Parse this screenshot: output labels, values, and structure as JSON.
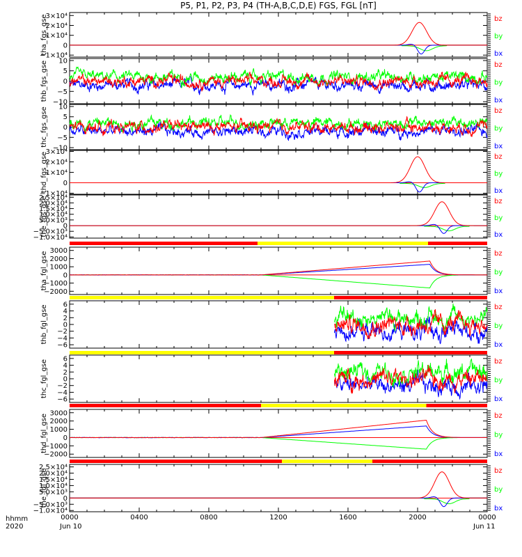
{
  "title": "P5, P1, P2, P3, P4 (TH-A,B,C,D,E) FGS, FGL [nT]",
  "footer": {
    "time_label": "hhmm",
    "year_label": "2020",
    "start_date": "Jun 10",
    "end_date": "Jun 11"
  },
  "colors": {
    "bx": "#0000ff",
    "by": "#00ff00",
    "bz": "#ff0000",
    "bar_red": "#ff0000",
    "bar_yellow": "#ffff00"
  },
  "chart_data": {
    "type": "line",
    "x_ticks": [
      "0000",
      "0400",
      "0800",
      "1200",
      "1600",
      "2000",
      "0000"
    ],
    "x_range_hours": [
      0,
      24
    ],
    "legend": [
      "bz",
      "by",
      "bx"
    ],
    "panels": [
      {
        "ylabel": "tha_fgs_gse",
        "yticks": [
          "3×10⁴",
          "2×10⁴",
          "1×10⁴",
          "0",
          "−1×10⁴"
        ],
        "ytick_values": [
          30000,
          20000,
          10000,
          0,
          -10000
        ],
        "ylim": [
          -12000,
          33000
        ],
        "signal": "spike",
        "spike_center": 20.1,
        "peak_bz": 23000,
        "peak_by": -5000,
        "peak_bx": -9000,
        "status_bar": null
      },
      {
        "ylabel": "thb_fgs_gse",
        "yticks": [
          "10",
          "5",
          "0",
          "−5",
          "−10"
        ],
        "ytick_values": [
          10,
          5,
          0,
          -5,
          -10
        ],
        "ylim": [
          -11,
          11
        ],
        "signal": "noise",
        "base_bz": 0,
        "base_by": 2,
        "base_bx": -2,
        "status_bar": null
      },
      {
        "ylabel": "thc_fgs_gse",
        "yticks": [
          "10",
          "5",
          "0",
          "−5",
          "−10"
        ],
        "ytick_values": [
          10,
          5,
          0,
          -5,
          -10
        ],
        "ylim": [
          -11,
          11
        ],
        "signal": "noise",
        "base_bz": 0,
        "base_by": 2,
        "base_bx": -2,
        "status_bar": null
      },
      {
        "ylabel": "thd_fgs_gse",
        "yticks": [
          "3×10⁴",
          "2×10⁴",
          "1×10⁴",
          "0",
          "−1×10⁴"
        ],
        "ytick_values": [
          30000,
          20000,
          10000,
          0,
          -10000
        ],
        "ylim": [
          -11000,
          31000
        ],
        "signal": "spike",
        "spike_center": 20.0,
        "peak_bz": 25000,
        "peak_by": -4000,
        "peak_bx": -9000,
        "status_bar": null
      },
      {
        "ylabel": "the_fgs_gse",
        "yticks": [
          "2.5×10⁴",
          "2.0×10⁴",
          "1.5×10⁴",
          "1.0×10⁴",
          "5.0×10³",
          "0",
          "−5.0×10³",
          "−1.0×10⁴"
        ],
        "ytick_values": [
          25000,
          20000,
          15000,
          10000,
          5000,
          0,
          -5000,
          -10000
        ],
        "ylim": [
          -11000,
          27000
        ],
        "signal": "spike",
        "spike_center": 21.4,
        "peak_bz": 21000,
        "peak_by": -4000,
        "peak_bx": -7000,
        "status_bar": null
      },
      {
        "ylabel": "tha_fgl_gse",
        "yticks": [
          "3000",
          "2000",
          "1000",
          "0",
          "−1000",
          "−2000"
        ],
        "ytick_values": [
          3000,
          2000,
          1000,
          0,
          -1000,
          -2000
        ],
        "ylim": [
          -2400,
          3400
        ],
        "signal": "ramp",
        "ramp_start": 11,
        "ramp_end": 20.7,
        "ramp_bz": 1700,
        "ramp_bx": 1300,
        "ramp_by": -1600,
        "status_bar": {
          "segments": [
            [
              "red",
              0,
              10.8
            ],
            [
              "yellow",
              10.8,
              20.6
            ],
            [
              "red",
              20.6,
              24
            ]
          ]
        }
      },
      {
        "ylabel": "thb_fgl_gse",
        "yticks": [
          "6",
          "4",
          "2",
          "0",
          "−2",
          "−4",
          "−6"
        ],
        "ytick_values": [
          6,
          4,
          2,
          0,
          -2,
          -4,
          -6
        ],
        "ylim": [
          -7,
          7
        ],
        "signal": "noise_late",
        "start": 15.2,
        "base_bz": 0,
        "base_by": 2,
        "base_bx": -2,
        "status_bar": {
          "segments": [
            [
              "yellow",
              0,
              15.2
            ],
            [
              "red",
              15.2,
              24
            ]
          ]
        }
      },
      {
        "ylabel": "thc_fgl_gse",
        "yticks": [
          "6",
          "4",
          "2",
          "0",
          "−2",
          "−4",
          "−6"
        ],
        "ytick_values": [
          6,
          4,
          2,
          0,
          -2,
          -4,
          -6
        ],
        "ylim": [
          -7,
          7
        ],
        "signal": "noise_late",
        "start": 15.2,
        "base_bz": 0,
        "base_by": 2,
        "base_bx": -2,
        "status_bar": {
          "segments": [
            [
              "yellow",
              0,
              15.2
            ],
            [
              "red",
              15.2,
              24
            ]
          ]
        }
      },
      {
        "ylabel": "thd_fgl_gse",
        "yticks": [
          "3000",
          "2000",
          "1000",
          "0",
          "−1000",
          "−2000"
        ],
        "ytick_values": [
          3000,
          2000,
          1000,
          0,
          -1000,
          -2000
        ],
        "ylim": [
          -2400,
          3400
        ],
        "signal": "ramp",
        "ramp_start": 11,
        "ramp_end": 20.5,
        "ramp_bz": 2100,
        "ramp_bx": 1400,
        "ramp_by": -1400,
        "status_bar": {
          "segments": [
            [
              "red",
              0,
              11.0
            ],
            [
              "yellow",
              11.0,
              20.5
            ],
            [
              "red",
              20.5,
              24
            ]
          ]
        }
      },
      {
        "ylabel": "the_fgl_gse",
        "yticks": [
          "2.5×10⁴",
          "2.0×10⁴",
          "1.5×10⁴",
          "1.0×10⁴",
          "5.0×10³",
          "0",
          "−5.0×10³",
          "−1.0×10⁴"
        ],
        "ytick_values": [
          25000,
          20000,
          15000,
          10000,
          5000,
          0,
          -5000,
          -10000
        ],
        "ylim": [
          -11000,
          27000
        ],
        "signal": "spike",
        "spike_center": 21.4,
        "peak_bz": 21000,
        "peak_by": -4000,
        "peak_bx": -7000,
        "status_bar": {
          "segments": [
            [
              "red",
              0,
              12.2
            ],
            [
              "yellow",
              12.2,
              17.4
            ],
            [
              "red",
              17.4,
              24
            ]
          ]
        }
      }
    ]
  }
}
